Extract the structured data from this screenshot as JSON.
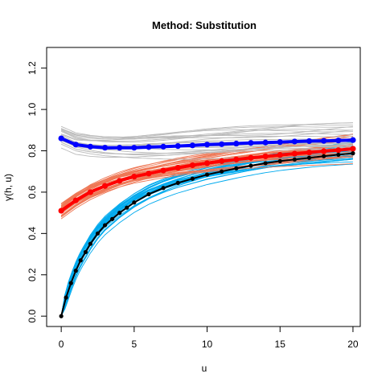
{
  "chart_data": {
    "type": "line",
    "title": "Method: Substitution",
    "xlabel": "u",
    "ylabel": "γ(h, u)",
    "xlim": [
      -1,
      20.5
    ],
    "ylim": [
      -0.05,
      1.3
    ],
    "xticks": [
      0,
      5,
      10,
      15,
      20
    ],
    "yticks": [
      0.0,
      0.2,
      0.4,
      0.6,
      0.8,
      1.0,
      1.2
    ],
    "xtick_labels": [
      "0",
      "5",
      "10",
      "15",
      "20"
    ],
    "ytick_labels": [
      "0.0",
      "0.2",
      "0.4",
      "0.6",
      "0.8",
      "1.0",
      "1.2"
    ],
    "grid": false,
    "ensemble_colors": {
      "blue": "#00aaee",
      "red": "#ee7755",
      "black": "#bbbbbb"
    },
    "series": [
      {
        "color": "#0000ff",
        "marker": "circle",
        "x": [
          0,
          1,
          2,
          3,
          4,
          5,
          6,
          7,
          8,
          9,
          10,
          11,
          12,
          13,
          14,
          15,
          16,
          17,
          18,
          19,
          20
        ],
        "y": [
          0.86,
          0.83,
          0.82,
          0.815,
          0.815,
          0.815,
          0.818,
          0.82,
          0.823,
          0.826,
          0.83,
          0.832,
          0.835,
          0.838,
          0.84,
          0.842,
          0.845,
          0.847,
          0.848,
          0.85,
          0.852
        ]
      },
      {
        "color": "#ff0000",
        "marker": "circle",
        "x": [
          0,
          1,
          2,
          3,
          4,
          5,
          6,
          7,
          8,
          9,
          10,
          11,
          12,
          13,
          14,
          15,
          16,
          17,
          18,
          19,
          20
        ],
        "y": [
          0.51,
          0.56,
          0.6,
          0.63,
          0.655,
          0.675,
          0.69,
          0.705,
          0.718,
          0.73,
          0.74,
          0.75,
          0.758,
          0.766,
          0.773,
          0.78,
          0.786,
          0.792,
          0.798,
          0.803,
          0.81
        ]
      },
      {
        "color": "#000000",
        "marker": "circle",
        "x": [
          0,
          0.33,
          0.67,
          1,
          1.33,
          1.67,
          2,
          2.5,
          3,
          3.5,
          4,
          4.5,
          5,
          6,
          7,
          8,
          9,
          10,
          11,
          12,
          13,
          14,
          15,
          16,
          17,
          18,
          19,
          20
        ],
        "y": [
          0.0,
          0.09,
          0.16,
          0.22,
          0.27,
          0.31,
          0.35,
          0.4,
          0.44,
          0.47,
          0.5,
          0.525,
          0.55,
          0.59,
          0.62,
          0.645,
          0.665,
          0.685,
          0.7,
          0.715,
          0.728,
          0.74,
          0.75,
          0.758,
          0.766,
          0.774,
          0.781,
          0.788
        ]
      }
    ]
  }
}
